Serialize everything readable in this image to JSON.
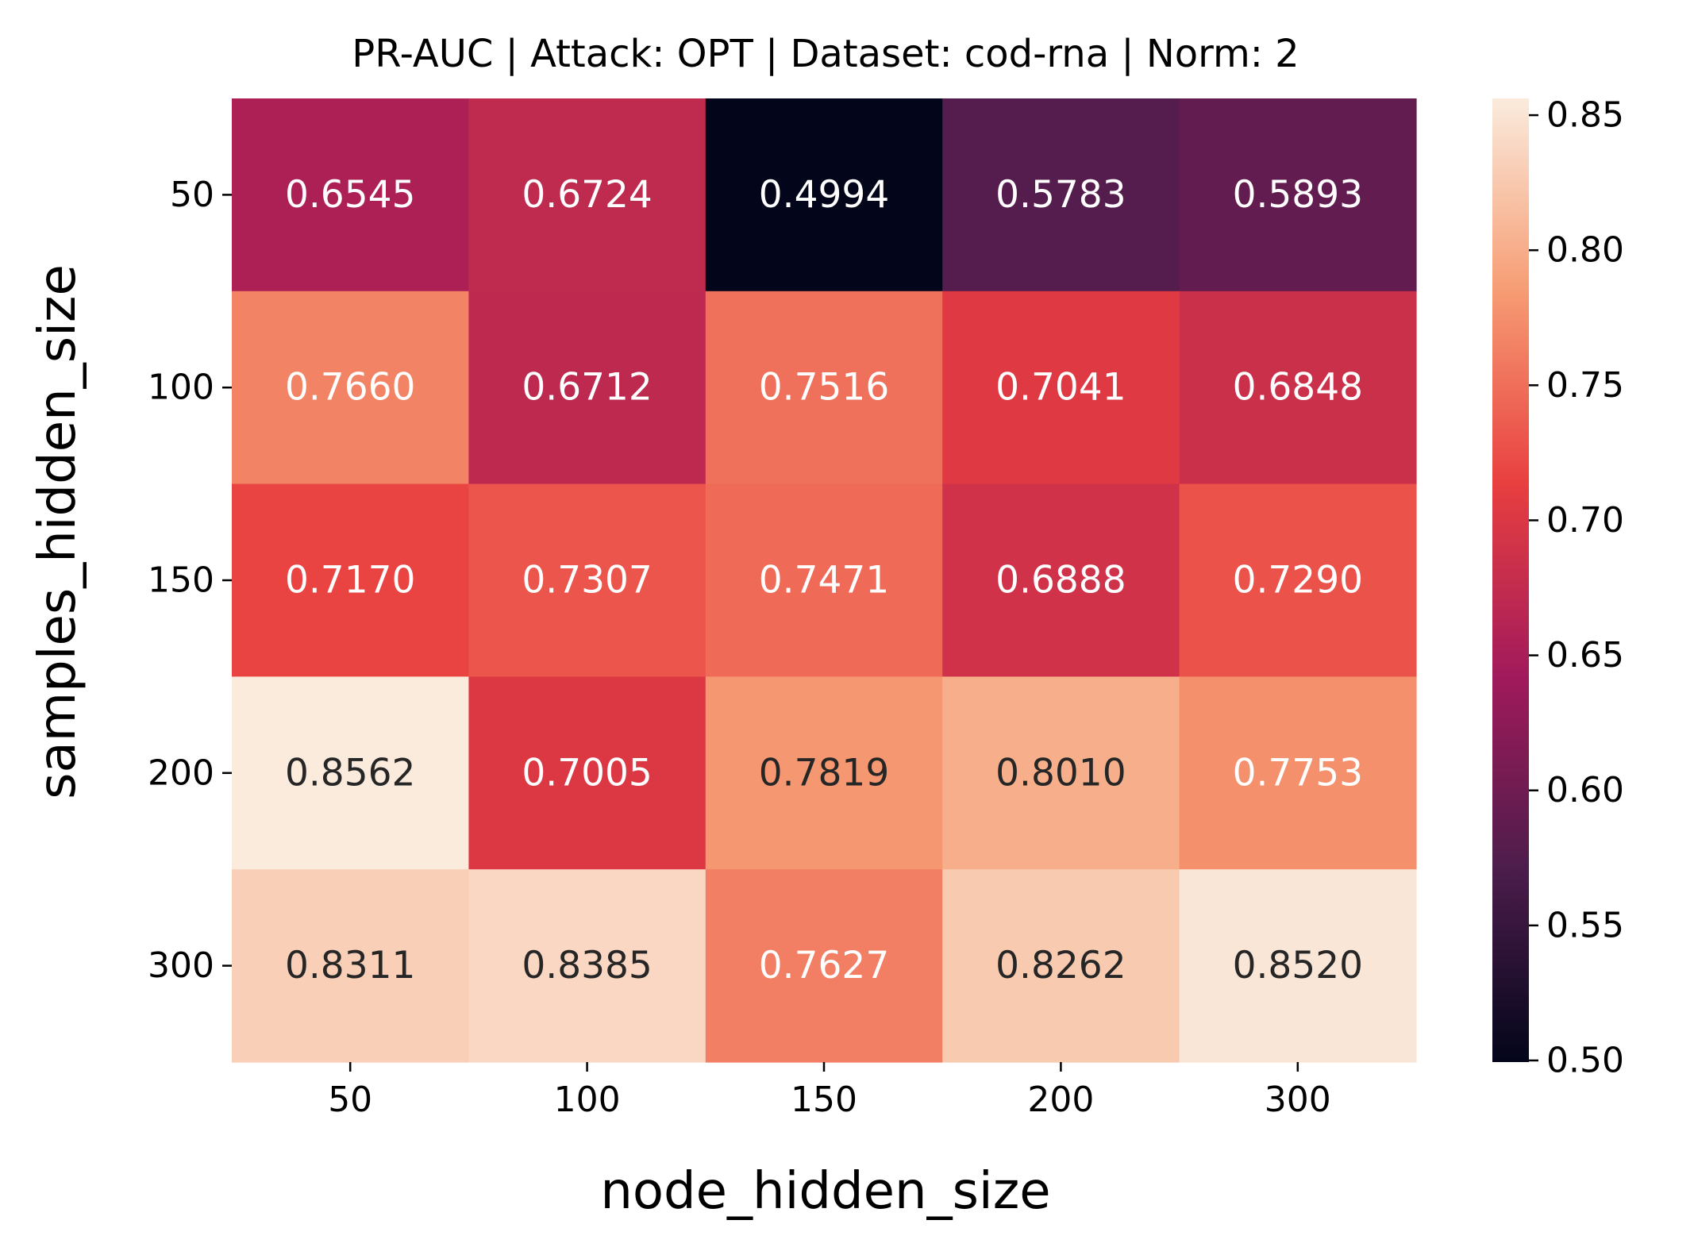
{
  "chart_data": {
    "type": "heatmap",
    "title": "PR-AUC | Attack: OPT | Dataset: cod-rna | Norm: 2",
    "xlabel": "node_hidden_size",
    "ylabel": "samples_hidden_size",
    "x_categories": [
      "50",
      "100",
      "150",
      "200",
      "300"
    ],
    "y_categories": [
      "50",
      "100",
      "150",
      "200",
      "300"
    ],
    "values": [
      [
        0.6545,
        0.6724,
        0.4994,
        0.5783,
        0.5893
      ],
      [
        0.766,
        0.6712,
        0.7516,
        0.7041,
        0.6848
      ],
      [
        0.717,
        0.7307,
        0.7471,
        0.6888,
        0.729
      ],
      [
        0.8562,
        0.7005,
        0.7819,
        0.801,
        0.7753
      ],
      [
        0.8311,
        0.8385,
        0.7627,
        0.8262,
        0.852
      ]
    ],
    "value_labels": [
      [
        "0.6545",
        "0.6724",
        "0.4994",
        "0.5783",
        "0.5893"
      ],
      [
        "0.7660",
        "0.6712",
        "0.7516",
        "0.7041",
        "0.6848"
      ],
      [
        "0.7170",
        "0.7307",
        "0.7471",
        "0.6888",
        "0.7290"
      ],
      [
        "0.8562",
        "0.7005",
        "0.7819",
        "0.8010",
        "0.7753"
      ],
      [
        "0.8311",
        "0.8385",
        "0.7627",
        "0.8262",
        "0.8520"
      ]
    ],
    "colorbar": {
      "range": [
        0.4994,
        0.8562
      ],
      "ticks": [
        0.5,
        0.55,
        0.6,
        0.65,
        0.7,
        0.75,
        0.8,
        0.85
      ],
      "tick_labels": [
        "0.50",
        "0.55",
        "0.60",
        "0.65",
        "0.70",
        "0.75",
        "0.80",
        "0.85"
      ]
    },
    "colormap": "rocket",
    "colormap_stops": [
      "#03051a",
      "#4c1d4b",
      "#a11a5b",
      "#e83f3f",
      "#f69c73",
      "#faebdd"
    ],
    "annotation_colors": {
      "light": "#ffffff",
      "dark": "#262626"
    },
    "grid": false,
    "legend": "colorbar-right"
  }
}
